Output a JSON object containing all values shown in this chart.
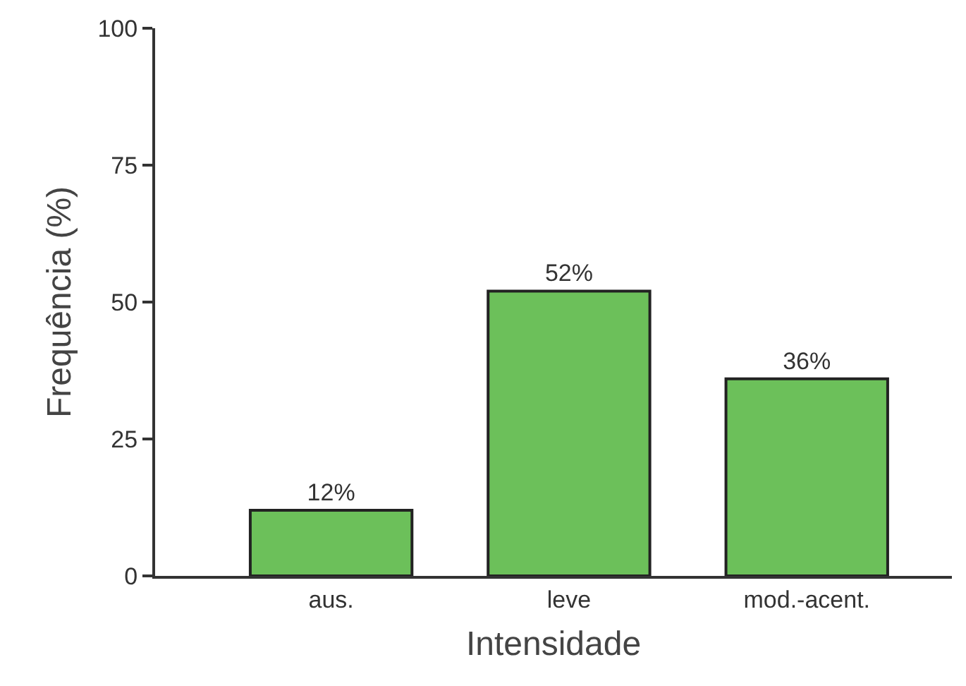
{
  "chart_data": {
    "type": "bar",
    "xlabel": "Intensidade",
    "ylabel": "Frequência (%)",
    "categories": [
      "aus.",
      "leve",
      "mod.-acent."
    ],
    "values": [
      12,
      52,
      36
    ],
    "value_labels": [
      "12%",
      "52%",
      "36%"
    ],
    "color": "#6cc05a",
    "ylim": [
      0,
      100
    ],
    "yticks": [
      0,
      25,
      50,
      75,
      100
    ],
    "grid": false,
    "legend": false
  }
}
